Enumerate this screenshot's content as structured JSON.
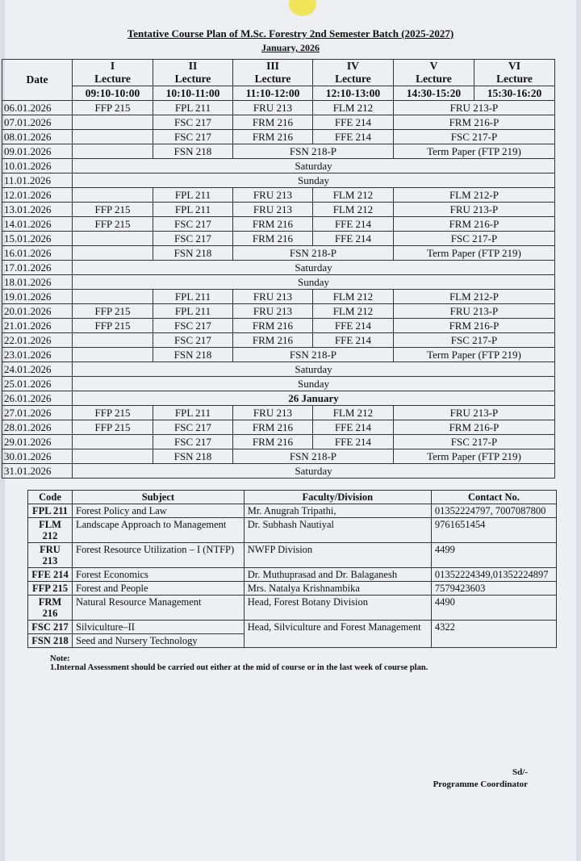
{
  "title": "Tentative Course Plan of M.Sc. Forestry 2nd Semester Batch (2025-2027)",
  "month": "January, 2026",
  "schedule": {
    "headers": {
      "date": "Date",
      "lectures": [
        {
          "num": "I",
          "label": "Lecture",
          "time": "09:10-10:00"
        },
        {
          "num": "II",
          "label": "Lecture",
          "time": "10:10-11:00"
        },
        {
          "num": "III",
          "label": "Lecture",
          "time": "11:10-12:00"
        },
        {
          "num": "IV",
          "label": "Lecture",
          "time": "12:10-13:00"
        },
        {
          "num": "V",
          "label": "Lecture",
          "time": "14:30-15:20"
        },
        {
          "num": "VI",
          "label": "Lecture",
          "time": "15:30-16:20"
        }
      ]
    },
    "rows": [
      {
        "date": "06.01.2026",
        "cells": [
          {
            "t": "FFP 215"
          },
          {
            "t": "FPL 211"
          },
          {
            "t": "FRU 213"
          },
          {
            "t": "FLM 212"
          },
          {
            "t": "FRU 213-P",
            "span": 2
          }
        ]
      },
      {
        "date": "07.01.2026",
        "cells": [
          {
            "t": ""
          },
          {
            "t": "FSC 217"
          },
          {
            "t": "FRM 216"
          },
          {
            "t": "FFE 214"
          },
          {
            "t": "FRM 216-P",
            "span": 2
          }
        ]
      },
      {
        "date": "08.01.2026",
        "cells": [
          {
            "t": ""
          },
          {
            "t": "FSC 217"
          },
          {
            "t": "FRM 216"
          },
          {
            "t": "FFE 214"
          },
          {
            "t": "FSC 217-P",
            "span": 2
          }
        ]
      },
      {
        "date": "09.01.2026",
        "cells": [
          {
            "t": ""
          },
          {
            "t": "FSN 218"
          },
          {
            "t": "FSN 218-P",
            "span": 2
          },
          {
            "t": "Term Paper (FTP 219)",
            "span": 2
          }
        ]
      },
      {
        "date": "10.01.2026",
        "cells": [
          {
            "t": "Saturday",
            "span": 6
          }
        ]
      },
      {
        "date": "11.01.2026",
        "cells": [
          {
            "t": "Sunday",
            "span": 6
          }
        ]
      },
      {
        "date": "12.01.2026",
        "cells": [
          {
            "t": ""
          },
          {
            "t": "FPL 211"
          },
          {
            "t": "FRU 213"
          },
          {
            "t": "FLM 212"
          },
          {
            "t": "FLM 212-P",
            "span": 2
          }
        ]
      },
      {
        "date": "13.01.2026",
        "cells": [
          {
            "t": "FFP 215"
          },
          {
            "t": "FPL 211"
          },
          {
            "t": "FRU 213"
          },
          {
            "t": "FLM 212"
          },
          {
            "t": "FRU 213-P",
            "span": 2
          }
        ]
      },
      {
        "date": "14.01.2026",
        "cells": [
          {
            "t": "FFP 215"
          },
          {
            "t": "FSC 217"
          },
          {
            "t": "FRM 216"
          },
          {
            "t": "FFE 214"
          },
          {
            "t": "FRM 216-P",
            "span": 2
          }
        ]
      },
      {
        "date": "15.01.2026",
        "cells": [
          {
            "t": ""
          },
          {
            "t": "FSC 217"
          },
          {
            "t": "FRM 216"
          },
          {
            "t": "FFE 214"
          },
          {
            "t": "FSC 217-P",
            "span": 2
          }
        ]
      },
      {
        "date": "16.01.2026",
        "cells": [
          {
            "t": ""
          },
          {
            "t": "FSN 218"
          },
          {
            "t": "FSN 218-P",
            "span": 2
          },
          {
            "t": "Term Paper (FTP 219)",
            "span": 2
          }
        ]
      },
      {
        "date": "17.01.2026",
        "cells": [
          {
            "t": "Saturday",
            "span": 6
          }
        ]
      },
      {
        "date": "18.01.2026",
        "cells": [
          {
            "t": "Sunday",
            "span": 6
          }
        ]
      },
      {
        "date": "19.01.2026",
        "cells": [
          {
            "t": ""
          },
          {
            "t": "FPL 211"
          },
          {
            "t": "FRU 213"
          },
          {
            "t": "FLM 212"
          },
          {
            "t": "FLM 212-P",
            "span": 2
          }
        ]
      },
      {
        "date": "20.01.2026",
        "cells": [
          {
            "t": "FFP 215"
          },
          {
            "t": "FPL 211"
          },
          {
            "t": "FRU 213"
          },
          {
            "t": "FLM 212"
          },
          {
            "t": "FRU 213-P",
            "span": 2
          }
        ]
      },
      {
        "date": "21.01.2026",
        "cells": [
          {
            "t": "FFP 215"
          },
          {
            "t": "FSC 217"
          },
          {
            "t": "FRM 216"
          },
          {
            "t": "FFE 214"
          },
          {
            "t": "FRM 216-P",
            "span": 2
          }
        ]
      },
      {
        "date": "22.01.2026",
        "cells": [
          {
            "t": ""
          },
          {
            "t": "FSC 217"
          },
          {
            "t": "FRM 216"
          },
          {
            "t": "FFE 214"
          },
          {
            "t": "FSC 217-P",
            "span": 2
          }
        ]
      },
      {
        "date": "23.01.2026",
        "cells": [
          {
            "t": ""
          },
          {
            "t": "FSN 218"
          },
          {
            "t": "FSN 218-P",
            "span": 2
          },
          {
            "t": "Term Paper (FTP 219)",
            "span": 2
          }
        ]
      },
      {
        "date": "24.01.2026",
        "cells": [
          {
            "t": "Saturday",
            "span": 6
          }
        ]
      },
      {
        "date": "25.01.2026",
        "cells": [
          {
            "t": "Sunday",
            "span": 6
          }
        ]
      },
      {
        "date": "26.01.2026",
        "cells": [
          {
            "t": "26 January",
            "span": 6,
            "bold": true
          }
        ]
      },
      {
        "date": "27.01.2026",
        "cells": [
          {
            "t": "FFP 215"
          },
          {
            "t": "FPL 211"
          },
          {
            "t": "FRU 213"
          },
          {
            "t": "FLM 212"
          },
          {
            "t": "FRU 213-P",
            "span": 2
          }
        ]
      },
      {
        "date": "28.01.2026",
        "cells": [
          {
            "t": "FFP 215"
          },
          {
            "t": "FSC 217"
          },
          {
            "t": "FRM 216"
          },
          {
            "t": "FFE 214"
          },
          {
            "t": "FRM 216-P",
            "span": 2
          }
        ]
      },
      {
        "date": "29.01.2026",
        "cells": [
          {
            "t": ""
          },
          {
            "t": "FSC 217"
          },
          {
            "t": "FRM 216"
          },
          {
            "t": "FFE 214"
          },
          {
            "t": "FSC 217-P",
            "span": 2
          }
        ]
      },
      {
        "date": "30.01.2026",
        "cells": [
          {
            "t": ""
          },
          {
            "t": "FSN 218"
          },
          {
            "t": "FSN 218-P",
            "span": 2
          },
          {
            "t": "Term Paper (FTP 219)",
            "span": 2
          }
        ]
      },
      {
        "date": "31.01.2026",
        "cells": [
          {
            "t": "Saturday",
            "span": 6
          }
        ]
      }
    ]
  },
  "subjects": {
    "headers": [
      "Code",
      "Subject",
      "Faculty/Division",
      "Contact No."
    ],
    "rows": [
      [
        "FPL 211",
        "Forest Policy and Law",
        "Mr. Anugrah Tripathi,",
        "01352224797, 7007087800"
      ],
      [
        "FLM 212",
        "Landscape Approach to Management",
        "Dr. Subhash Nautiyal",
        "9761651454"
      ],
      [
        "FRU 213",
        "Forest Resource Utilization – I (NTFP)",
        "NWFP Division",
        "4499"
      ],
      [
        "FFE 214",
        "Forest Economics",
        "Dr. Muthuprasad and Dr. Balaganesh",
        "01352224349,01352224897"
      ],
      [
        "FFP 215",
        "Forest and People",
        "Mrs. Natalya Krishnambika",
        "7579423603"
      ],
      [
        "FRM 216",
        "Natural Resource Management",
        "Head, Forest Botany Division",
        "4490"
      ],
      [
        "FSC 217",
        "Silviculture–II",
        "Head, Silviculture and Forest Management",
        "4322"
      ],
      [
        "FSN 218",
        "Seed and Nursery Technology",
        "",
        ""
      ]
    ]
  },
  "note": {
    "label": "Note:",
    "text": "1.Internal Assessment should be carried out either at the mid of course or in the last week of course plan."
  },
  "signature": {
    "sd": "Sd/-",
    "role": "Programme Coordinator"
  }
}
